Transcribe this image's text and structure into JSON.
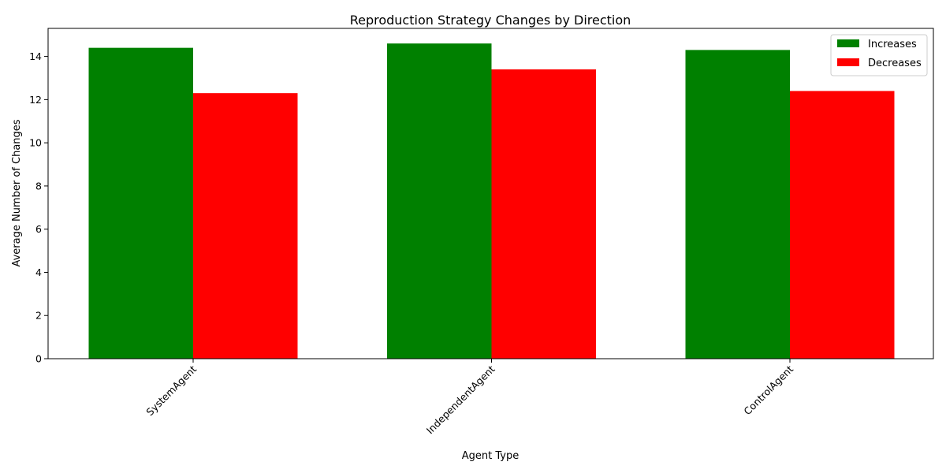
{
  "chart_data": {
    "type": "bar",
    "title": "Reproduction Strategy Changes by Direction",
    "xlabel": "Agent Type",
    "ylabel": "Average Number of Changes",
    "categories": [
      "SystemAgent",
      "IndependentAgent",
      "ControlAgent"
    ],
    "series": [
      {
        "name": "Increases",
        "color": "#008000",
        "values": [
          14.4,
          14.6,
          14.3
        ]
      },
      {
        "name": "Decreases",
        "color": "#ff0000",
        "values": [
          12.3,
          13.4,
          12.4
        ]
      }
    ],
    "ylim": [
      0,
      15.3
    ],
    "yticks": [
      0,
      2,
      4,
      6,
      8,
      10,
      12,
      14
    ],
    "xtick_rotation": 45,
    "grid": false,
    "legend_position": "top-right"
  }
}
